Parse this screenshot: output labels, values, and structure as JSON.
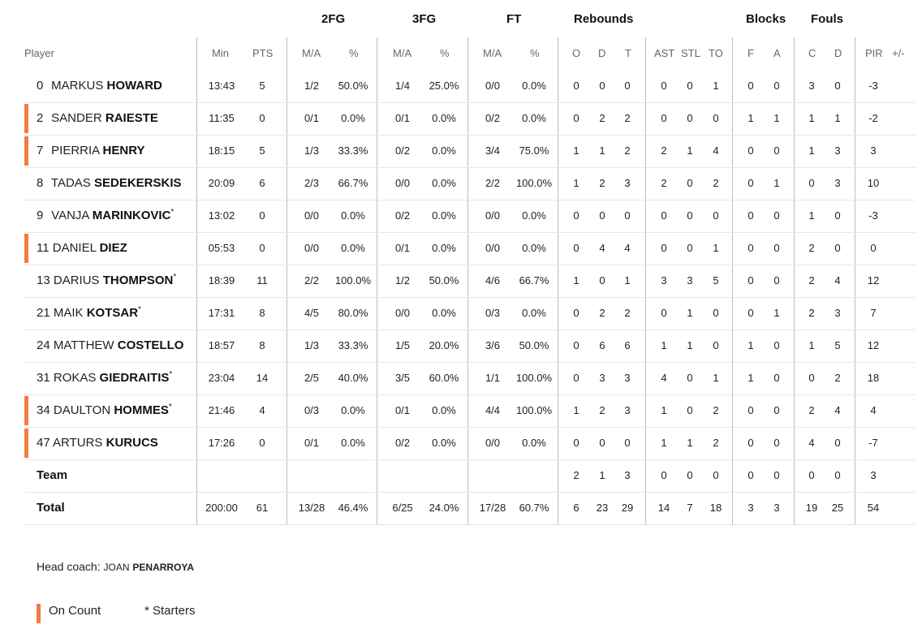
{
  "groups": {
    "fg2": "2FG",
    "fg3": "3FG",
    "ft": "FT",
    "rebounds": "Rebounds",
    "blocks": "Blocks",
    "fouls": "Fouls"
  },
  "headers": {
    "player": "Player",
    "min": "Min",
    "pts": "PTS",
    "fg2_ma": "M/A",
    "fg2_pct": "%",
    "fg3_ma": "M/A",
    "fg3_pct": "%",
    "ft_ma": "M/A",
    "ft_pct": "%",
    "reb_o": "O",
    "reb_d": "D",
    "reb_t": "T",
    "ast": "AST",
    "stl": "STL",
    "to": "TO",
    "blk_f": "F",
    "blk_a": "A",
    "foul_c": "C",
    "foul_d": "D",
    "pir": "PIR",
    "pm": "+/-"
  },
  "players": [
    {
      "num": "0",
      "first": "MARKUS",
      "last": "HOWARD",
      "starter": "",
      "on_court": false,
      "stats": [
        "13:43",
        "5",
        "1/2",
        "50.0%",
        "1/4",
        "25.0%",
        "0/0",
        "0.0%",
        "0",
        "0",
        "0",
        "0",
        "0",
        "1",
        "0",
        "0",
        "3",
        "0",
        "-3",
        ""
      ]
    },
    {
      "num": "2",
      "first": "SANDER",
      "last": "RAIESTE",
      "starter": "",
      "on_court": true,
      "stats": [
        "11:35",
        "0",
        "0/1",
        "0.0%",
        "0/1",
        "0.0%",
        "0/2",
        "0.0%",
        "0",
        "2",
        "2",
        "0",
        "0",
        "0",
        "1",
        "1",
        "1",
        "1",
        "-2",
        ""
      ]
    },
    {
      "num": "7",
      "first": "PIERRIA",
      "last": "HENRY",
      "starter": "",
      "on_court": true,
      "stats": [
        "18:15",
        "5",
        "1/3",
        "33.3%",
        "0/2",
        "0.0%",
        "3/4",
        "75.0%",
        "1",
        "1",
        "2",
        "2",
        "1",
        "4",
        "0",
        "0",
        "1",
        "3",
        "3",
        ""
      ]
    },
    {
      "num": "8",
      "first": "TADAS",
      "last": "SEDEKERSKIS",
      "starter": "",
      "on_court": false,
      "stats": [
        "20:09",
        "6",
        "2/3",
        "66.7%",
        "0/0",
        "0.0%",
        "2/2",
        "100.0%",
        "1",
        "2",
        "3",
        "2",
        "0",
        "2",
        "0",
        "1",
        "0",
        "3",
        "10",
        ""
      ]
    },
    {
      "num": "9",
      "first": "VANJA",
      "last": "MARINKOVIC",
      "starter": "*",
      "on_court": false,
      "stats": [
        "13:02",
        "0",
        "0/0",
        "0.0%",
        "0/2",
        "0.0%",
        "0/0",
        "0.0%",
        "0",
        "0",
        "0",
        "0",
        "0",
        "0",
        "0",
        "0",
        "1",
        "0",
        "-3",
        ""
      ]
    },
    {
      "num": "11",
      "first": "DANIEL",
      "last": "DIEZ",
      "starter": "",
      "on_court": true,
      "stats": [
        "05:53",
        "0",
        "0/0",
        "0.0%",
        "0/1",
        "0.0%",
        "0/0",
        "0.0%",
        "0",
        "4",
        "4",
        "0",
        "0",
        "1",
        "0",
        "0",
        "2",
        "0",
        "0",
        ""
      ]
    },
    {
      "num": "13",
      "first": "DARIUS",
      "last": "THOMPSON",
      "starter": "*",
      "on_court": false,
      "stats": [
        "18:39",
        "11",
        "2/2",
        "100.0%",
        "1/2",
        "50.0%",
        "4/6",
        "66.7%",
        "1",
        "0",
        "1",
        "3",
        "3",
        "5",
        "0",
        "0",
        "2",
        "4",
        "12",
        ""
      ]
    },
    {
      "num": "21",
      "first": "MAIK",
      "last": "KOTSAR",
      "starter": "*",
      "on_court": false,
      "stats": [
        "17:31",
        "8",
        "4/5",
        "80.0%",
        "0/0",
        "0.0%",
        "0/3",
        "0.0%",
        "0",
        "2",
        "2",
        "0",
        "1",
        "0",
        "0",
        "1",
        "2",
        "3",
        "7",
        ""
      ]
    },
    {
      "num": "24",
      "first": "MATTHEW",
      "last": "COSTELLO",
      "starter": "",
      "on_court": false,
      "stats": [
        "18:57",
        "8",
        "1/3",
        "33.3%",
        "1/5",
        "20.0%",
        "3/6",
        "50.0%",
        "0",
        "6",
        "6",
        "1",
        "1",
        "0",
        "1",
        "0",
        "1",
        "5",
        "12",
        ""
      ]
    },
    {
      "num": "31",
      "first": "ROKAS",
      "last": "GIEDRAITIS",
      "starter": "*",
      "on_court": false,
      "stats": [
        "23:04",
        "14",
        "2/5",
        "40.0%",
        "3/5",
        "60.0%",
        "1/1",
        "100.0%",
        "0",
        "3",
        "3",
        "4",
        "0",
        "1",
        "1",
        "0",
        "0",
        "2",
        "18",
        ""
      ]
    },
    {
      "num": "34",
      "first": "DAULTON",
      "last": "HOMMES",
      "starter": "*",
      "on_court": true,
      "stats": [
        "21:46",
        "4",
        "0/3",
        "0.0%",
        "0/1",
        "0.0%",
        "4/4",
        "100.0%",
        "1",
        "2",
        "3",
        "1",
        "0",
        "2",
        "0",
        "0",
        "2",
        "4",
        "4",
        ""
      ]
    },
    {
      "num": "47",
      "first": "ARTURS",
      "last": "KURUCS",
      "starter": "",
      "on_court": true,
      "stats": [
        "17:26",
        "0",
        "0/1",
        "0.0%",
        "0/2",
        "0.0%",
        "0/0",
        "0.0%",
        "0",
        "0",
        "0",
        "1",
        "1",
        "2",
        "0",
        "0",
        "4",
        "0",
        "-7",
        ""
      ]
    }
  ],
  "team_row": {
    "label": "Team",
    "stats": [
      "",
      "",
      "",
      "",
      "",
      "",
      "",
      "",
      "2",
      "1",
      "3",
      "0",
      "0",
      "0",
      "0",
      "0",
      "0",
      "0",
      "3",
      ""
    ]
  },
  "total_row": {
    "label": "Total",
    "stats": [
      "200:00",
      "61",
      "13/28",
      "46.4%",
      "6/25",
      "24.0%",
      "17/28",
      "60.7%",
      "6",
      "23",
      "29",
      "14",
      "7",
      "18",
      "3",
      "3",
      "19",
      "25",
      "54",
      ""
    ]
  },
  "coach": {
    "label": "Head coach:",
    "first": "JOAN",
    "last": "PENARROYA"
  },
  "legend": {
    "on_court": "On Count",
    "starters": "* Starters"
  },
  "colors": {
    "on_court_bar": "#f47b44",
    "divider": "#bdbdbd"
  }
}
